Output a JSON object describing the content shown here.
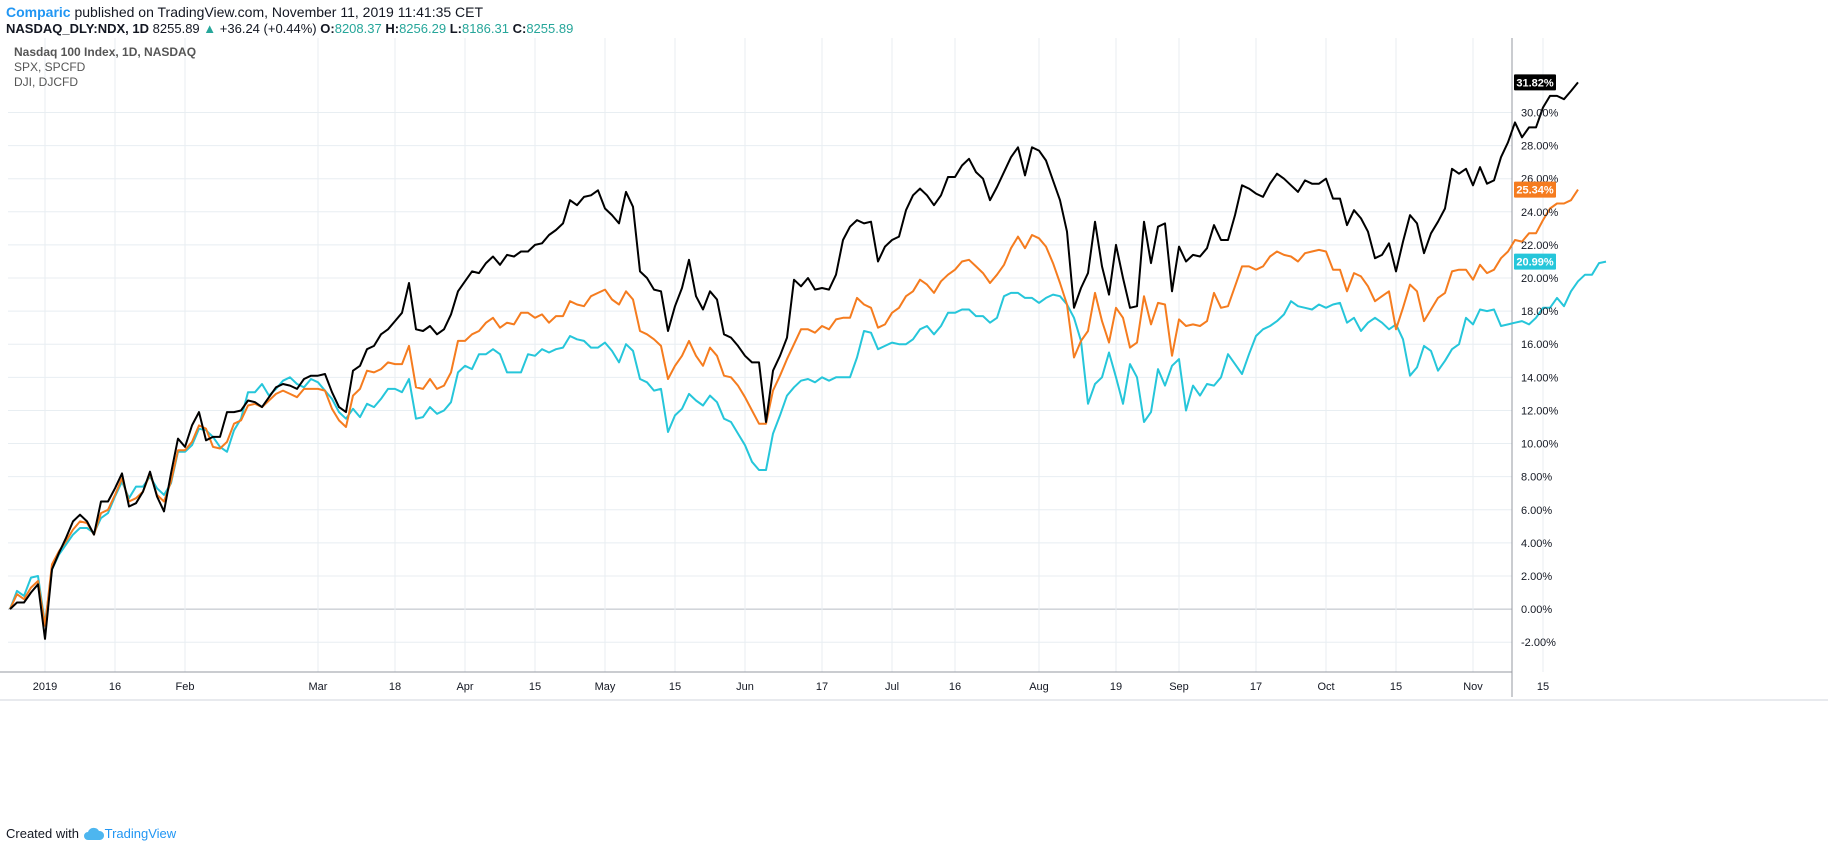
{
  "header": {
    "author": "Comparic",
    "published": "published on TradingView.com, November 11, 2019 11:41:35 CET",
    "symbol": "NASDAQ_DLY:NDX, 1D",
    "last": "8255.89",
    "change_arrow": "▲",
    "change": "+36.24 (+0.44%)",
    "o_label": "O:",
    "o_value": "8208.37",
    "h_label": "H:",
    "h_value": "8256.29",
    "l_label": "L:",
    "l_value": "8186.31",
    "c_label": "C:",
    "c_value": "8255.89"
  },
  "footer": {
    "created_with": "Created with",
    "brand": "TradingView"
  },
  "colors": {
    "ndx": "#000000",
    "spx": "#f57c1f",
    "dji": "#26c6da",
    "grid": "#e8eef2",
    "axis": "#9598a1"
  },
  "chart_data": {
    "type": "line",
    "legend": [
      "Nasdaq 100 Index, 1D, NASDAQ",
      "SPX, SPCFD",
      "DJI, DJCFD"
    ],
    "x_ticks": [
      "2019",
      "16",
      "Feb",
      "Mar",
      "18",
      "Apr",
      "15",
      "May",
      "15",
      "Jun",
      "17",
      "Jul",
      "16",
      "Aug",
      "19",
      "Sep",
      "17",
      "Oct",
      "15",
      "Nov",
      "15"
    ],
    "x_tick_index": [
      5,
      15,
      25,
      44,
      55,
      65,
      75,
      85,
      95,
      105,
      116,
      126,
      135,
      147,
      158,
      167,
      178,
      188,
      198,
      209,
      219
    ],
    "y_ticks": [
      -2,
      0,
      2,
      4,
      6,
      8,
      10,
      12,
      14,
      16,
      18,
      20,
      22,
      24,
      26,
      28,
      30
    ],
    "y_unit": "%",
    "ylim": [
      -3.8,
      34.5
    ],
    "series": [
      {
        "name": "Nasdaq 100 Index, 1D, NASDAQ",
        "color": "#000000",
        "last_label": "31.82%",
        "values": [
          0,
          0.4,
          0.4,
          1.0,
          1.5,
          -1.8,
          2.4,
          3.4,
          4.3,
          5.3,
          5.7,
          5.3,
          4.5,
          6.5,
          6.5,
          7.3,
          8.2,
          6.2,
          6.4,
          7.1,
          8.3,
          6.8,
          5.9,
          8.2,
          10.3,
          9.8,
          11.1,
          11.9,
          10.2,
          10.4,
          10.4,
          11.9,
          11.9,
          12.0,
          12.6,
          12.5,
          12.2,
          12.8,
          13.4,
          13.6,
          13.5,
          13.3,
          13.9,
          14.1,
          14.1,
          14.2,
          13.1,
          12.2,
          11.9,
          14.4,
          14.7,
          15.7,
          15.9,
          16.6,
          16.9,
          17.4,
          17.9,
          19.7,
          16.9,
          16.8,
          17.1,
          16.6,
          16.9,
          17.8,
          19.2,
          19.8,
          20.4,
          20.3,
          20.9,
          21.3,
          20.8,
          21.4,
          21.3,
          21.6,
          21.6,
          22.0,
          22.1,
          22.6,
          22.9,
          23.3,
          24.7,
          24.4,
          24.9,
          25.0,
          25.3,
          24.2,
          23.8,
          23.3,
          25.2,
          24.3,
          20.4,
          20.0,
          19.3,
          19.2,
          16.8,
          18.3,
          19.4,
          21.1,
          18.9,
          18.1,
          19.2,
          18.7,
          16.6,
          16.4,
          15.9,
          15.3,
          14.9,
          14.9,
          11.3,
          14.4,
          15.3,
          16.4,
          19.9,
          19.5,
          20.0,
          19.3,
          19.4,
          19.3,
          20.2,
          22.3,
          23.1,
          23.5,
          23.3,
          23.4,
          21.0,
          21.9,
          22.3,
          22.5,
          24.1,
          25.0,
          25.4,
          25.0,
          24.4,
          25.0,
          26.1,
          26.1,
          26.8,
          27.2,
          26.4,
          26.0,
          24.7,
          25.5,
          26.4,
          27.3,
          27.9,
          26.2,
          27.9,
          27.7,
          27.1,
          25.9,
          24.7,
          22.8,
          18.2,
          19.4,
          20.3,
          23.4,
          20.7,
          19.0,
          22.0,
          20.0,
          18.2,
          18.3,
          23.4,
          20.9,
          23.1,
          23.3,
          19.2,
          21.9,
          21.0,
          21.4,
          21.3,
          21.8,
          23.2,
          22.3,
          22.3,
          23.8,
          25.6,
          25.4,
          25.1,
          24.9,
          25.7,
          26.3,
          26.0,
          25.6,
          25.2,
          25.9,
          25.7,
          25.7,
          26.0,
          24.8,
          24.8,
          23.2,
          24.1,
          23.6,
          22.8,
          21.2,
          21.4,
          22.1,
          20.4,
          22.2,
          23.8,
          23.3,
          21.5,
          22.7,
          23.4,
          24.2,
          26.6,
          26.3,
          26.6,
          25.6,
          26.7,
          25.7,
          25.9,
          27.3,
          28.2,
          29.4,
          28.5,
          29.1,
          29.1,
          30.3,
          31.0,
          31.0,
          30.8,
          31.3,
          31.82
        ]
      },
      {
        "name": "SPX, SPCFD",
        "color": "#f57c1f",
        "last_label": "25.34%",
        "values": [
          0,
          0.9,
          0.6,
          1.3,
          1.7,
          -1.0,
          2.7,
          3.5,
          4.1,
          4.8,
          5.3,
          5.2,
          4.5,
          5.8,
          6.0,
          6.9,
          7.9,
          6.5,
          6.7,
          7.1,
          8.2,
          6.9,
          6.5,
          7.7,
          9.6,
          9.6,
          10.1,
          11.1,
          10.9,
          9.8,
          9.7,
          10.1,
          11.2,
          11.4,
          12.3,
          12.4,
          12.2,
          12.6,
          13.0,
          13.2,
          13.0,
          12.8,
          13.3,
          13.3,
          13.3,
          13.2,
          12.1,
          11.4,
          11.0,
          12.9,
          13.3,
          14.4,
          14.3,
          14.5,
          14.9,
          14.8,
          14.8,
          15.9,
          13.4,
          13.3,
          13.9,
          13.3,
          13.5,
          14.3,
          16.2,
          16.2,
          16.6,
          16.8,
          17.3,
          17.6,
          17.0,
          17.3,
          17.2,
          17.9,
          17.9,
          17.6,
          17.8,
          17.3,
          17.7,
          17.7,
          18.6,
          18.4,
          18.3,
          18.9,
          19.1,
          19.3,
          18.7,
          18.4,
          19.2,
          18.7,
          16.8,
          16.6,
          16.3,
          15.9,
          13.9,
          14.7,
          15.3,
          16.2,
          15.3,
          14.7,
          15.8,
          15.3,
          14.1,
          14.0,
          13.5,
          12.8,
          12.0,
          11.2,
          11.2,
          13.2,
          14.1,
          15.1,
          16.0,
          16.9,
          16.9,
          16.7,
          17.1,
          16.9,
          17.5,
          17.6,
          17.6,
          18.8,
          18.4,
          18.2,
          17.0,
          17.2,
          17.9,
          18.2,
          18.9,
          19.2,
          19.9,
          19.6,
          19.1,
          19.8,
          20.2,
          20.5,
          21.0,
          21.1,
          20.7,
          20.3,
          19.7,
          20.2,
          20.8,
          21.8,
          22.5,
          21.8,
          22.6,
          22.4,
          21.9,
          20.9,
          19.7,
          18.4,
          15.2,
          16.2,
          16.8,
          19.1,
          17.4,
          16.1,
          18.2,
          17.6,
          15.8,
          16.1,
          18.9,
          17.2,
          18.5,
          18.4,
          15.3,
          17.5,
          17.1,
          17.2,
          17.1,
          17.4,
          19.1,
          18.2,
          18.3,
          19.5,
          20.7,
          20.7,
          20.5,
          20.7,
          21.3,
          21.6,
          21.4,
          21.3,
          21.0,
          21.5,
          21.6,
          21.7,
          21.6,
          20.5,
          20.5,
          19.2,
          20.3,
          20.1,
          19.5,
          18.6,
          18.9,
          19.2,
          16.9,
          18.2,
          19.6,
          19.2,
          17.4,
          18.1,
          18.8,
          19.1,
          20.4,
          20.5,
          20.5,
          19.9,
          20.8,
          20.3,
          20.5,
          21.2,
          21.6,
          22.3,
          22.2,
          22.7,
          22.7,
          23.5,
          24.2,
          24.5,
          24.5,
          24.7,
          25.34
        ]
      },
      {
        "name": "DJI, DJCFD",
        "color": "#26c6da",
        "last_label": "20.99%",
        "values": [
          0,
          1.1,
          0.8,
          1.9,
          2.0,
          -0.9,
          2.4,
          3.3,
          3.9,
          4.5,
          4.9,
          4.9,
          4.6,
          5.5,
          5.8,
          6.8,
          7.7,
          6.7,
          7.4,
          7.4,
          8.0,
          7.3,
          6.9,
          7.6,
          9.5,
          9.5,
          9.9,
          10.9,
          10.8,
          10.4,
          9.8,
          9.5,
          10.8,
          11.5,
          13.1,
          13.1,
          13.6,
          12.9,
          13.3,
          13.8,
          14.0,
          13.6,
          13.4,
          13.9,
          13.7,
          13.2,
          12.7,
          11.9,
          11.5,
          12.1,
          11.6,
          12.4,
          12.2,
          12.7,
          13.3,
          13.3,
          13.1,
          13.9,
          11.5,
          11.6,
          12.2,
          11.8,
          12.0,
          12.5,
          14.3,
          14.7,
          14.5,
          15.4,
          15.4,
          15.7,
          15.4,
          14.3,
          14.3,
          14.3,
          15.4,
          15.3,
          15.7,
          15.5,
          15.7,
          15.8,
          16.5,
          16.3,
          16.2,
          15.8,
          15.8,
          16.1,
          15.6,
          14.9,
          16.0,
          15.6,
          13.9,
          13.7,
          13.2,
          13.3,
          10.7,
          11.7,
          12.1,
          13.0,
          12.6,
          12.3,
          12.9,
          12.5,
          11.5,
          11.3,
          10.6,
          9.9,
          8.9,
          8.4,
          8.4,
          10.6,
          11.7,
          12.9,
          13.4,
          13.8,
          13.9,
          13.7,
          14.0,
          13.8,
          14.0,
          14.0,
          14.0,
          15.2,
          16.8,
          16.7,
          15.7,
          15.9,
          16.1,
          16.0,
          16.0,
          16.3,
          16.9,
          17.1,
          16.6,
          17.1,
          17.9,
          17.9,
          18.1,
          18.1,
          17.7,
          17.7,
          17.3,
          17.6,
          18.9,
          19.1,
          19.1,
          18.8,
          18.8,
          18.5,
          18.8,
          19.0,
          18.9,
          18.4,
          17.6,
          16.2,
          12.4,
          13.6,
          14.0,
          15.5,
          14.0,
          12.4,
          14.8,
          14.0,
          11.3,
          11.9,
          14.5,
          13.5,
          14.7,
          15.1,
          12.0,
          13.5,
          12.9,
          13.6,
          13.5,
          14.0,
          15.4,
          14.8,
          14.2,
          15.4,
          16.5,
          16.9,
          17.1,
          17.4,
          17.8,
          18.6,
          18.3,
          18.2,
          18.1,
          18.4,
          18.2,
          18.4,
          18.5,
          17.3,
          17.6,
          16.8,
          17.3,
          17.6,
          17.3,
          16.9,
          17.2,
          16.3,
          14.1,
          14.6,
          15.9,
          15.6,
          14.4,
          15.0,
          15.7,
          16.0,
          17.6,
          17.2,
          18.1,
          18.0,
          18.1,
          17.1,
          17.2,
          17.3,
          17.4,
          17.2,
          17.6,
          18.2,
          18.2,
          18.8,
          18.3,
          19.2,
          19.8,
          20.2,
          20.2,
          20.9,
          20.99
        ]
      }
    ]
  }
}
